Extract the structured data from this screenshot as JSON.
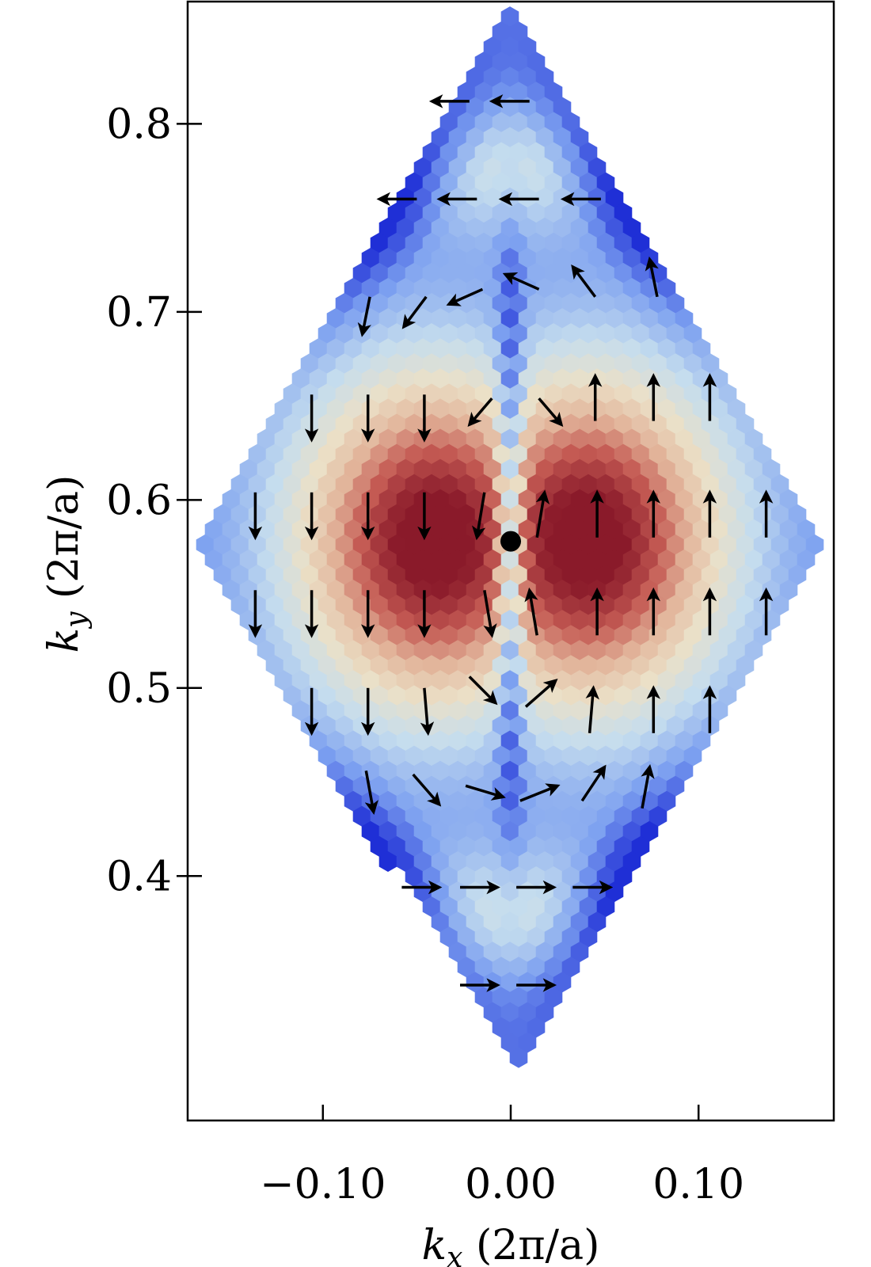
{
  "chart_data": {
    "type": "heatmap",
    "title": "",
    "xlabel": {
      "symbol": "k",
      "subscript": "x",
      "unit": " (2π/a)"
    },
    "ylabel": {
      "symbol": "k",
      "subscript": "y",
      "unit": " (2π/a)"
    },
    "xlim": [
      -0.172,
      0.172
    ],
    "ylim": [
      0.27,
      0.865
    ],
    "x_ticks": [
      {
        "value": -0.1,
        "label": "−0.10"
      },
      {
        "value": 0.0,
        "label": "0.00"
      },
      {
        "value": 0.1,
        "label": "0.10"
      }
    ],
    "y_ticks": [
      {
        "value": 0.4,
        "label": "0.4"
      },
      {
        "value": 0.5,
        "label": "0.5"
      },
      {
        "value": 0.6,
        "label": "0.6"
      },
      {
        "value": 0.7,
        "label": "0.7"
      },
      {
        "value": 0.8,
        "label": "0.8"
      }
    ],
    "grid": false,
    "legend": "none",
    "colormap": [
      "#1f2fd6",
      "#7b9ff0",
      "#c5ddee",
      "#ebe0c7",
      "#e2b49a",
      "#c45a53",
      "#8a1a2a"
    ],
    "region": {
      "shape": "rhombus",
      "center": [
        0.0,
        0.578
      ],
      "top": [
        0.0,
        0.86
      ],
      "bottom": [
        0.0,
        0.29
      ],
      "left": [
        -0.165,
        0.578
      ],
      "right": [
        0.165,
        0.578
      ]
    },
    "field_maxima": [
      [
        -0.04,
        0.578
      ],
      [
        0.04,
        0.578
      ]
    ],
    "marker": {
      "x": 0.0,
      "y": 0.578,
      "color": "#000000"
    },
    "arrow_color": "#000000",
    "arrows": [
      {
        "x": -0.022,
        "y": 0.812,
        "dx": -0.02,
        "dy": 0.0
      },
      {
        "x": 0.01,
        "y": 0.812,
        "dx": -0.02,
        "dy": 0.0
      },
      {
        "x": -0.05,
        "y": 0.76,
        "dx": -0.02,
        "dy": 0.0
      },
      {
        "x": -0.018,
        "y": 0.76,
        "dx": -0.02,
        "dy": 0.0
      },
      {
        "x": 0.015,
        "y": 0.76,
        "dx": -0.02,
        "dy": 0.0
      },
      {
        "x": 0.048,
        "y": 0.76,
        "dx": -0.02,
        "dy": 0.0
      },
      {
        "x": -0.075,
        "y": 0.708,
        "dx": -0.004,
        "dy": -0.02
      },
      {
        "x": -0.045,
        "y": 0.708,
        "dx": -0.012,
        "dy": -0.016
      },
      {
        "x": -0.015,
        "y": 0.712,
        "dx": -0.018,
        "dy": -0.008
      },
      {
        "x": 0.015,
        "y": 0.712,
        "dx": -0.018,
        "dy": 0.008
      },
      {
        "x": 0.045,
        "y": 0.708,
        "dx": -0.012,
        "dy": 0.016
      },
      {
        "x": 0.078,
        "y": 0.708,
        "dx": -0.004,
        "dy": 0.02
      },
      {
        "x": -0.106,
        "y": 0.656,
        "dx": 0.0,
        "dy": -0.024
      },
      {
        "x": -0.076,
        "y": 0.656,
        "dx": 0.0,
        "dy": -0.024
      },
      {
        "x": -0.046,
        "y": 0.656,
        "dx": 0.0,
        "dy": -0.024
      },
      {
        "x": -0.01,
        "y": 0.654,
        "dx": -0.012,
        "dy": -0.014
      },
      {
        "x": 0.015,
        "y": 0.654,
        "dx": 0.012,
        "dy": -0.014
      },
      {
        "x": 0.045,
        "y": 0.642,
        "dx": 0.0,
        "dy": 0.024
      },
      {
        "x": 0.076,
        "y": 0.642,
        "dx": 0.0,
        "dy": 0.024
      },
      {
        "x": 0.106,
        "y": 0.642,
        "dx": 0.0,
        "dy": 0.024
      },
      {
        "x": -0.136,
        "y": 0.604,
        "dx": 0.0,
        "dy": -0.024
      },
      {
        "x": -0.106,
        "y": 0.604,
        "dx": 0.0,
        "dy": -0.024
      },
      {
        "x": -0.076,
        "y": 0.604,
        "dx": 0.0,
        "dy": -0.024
      },
      {
        "x": -0.046,
        "y": 0.604,
        "dx": 0.0,
        "dy": -0.024
      },
      {
        "x": -0.014,
        "y": 0.604,
        "dx": -0.004,
        "dy": -0.024
      },
      {
        "x": 0.014,
        "y": 0.58,
        "dx": 0.004,
        "dy": 0.024
      },
      {
        "x": 0.046,
        "y": 0.58,
        "dx": 0.0,
        "dy": 0.024
      },
      {
        "x": 0.076,
        "y": 0.58,
        "dx": 0.0,
        "dy": 0.024
      },
      {
        "x": 0.106,
        "y": 0.58,
        "dx": 0.0,
        "dy": 0.024
      },
      {
        "x": 0.136,
        "y": 0.58,
        "dx": 0.0,
        "dy": 0.024
      },
      {
        "x": -0.136,
        "y": 0.552,
        "dx": 0.0,
        "dy": -0.024
      },
      {
        "x": -0.106,
        "y": 0.552,
        "dx": 0.0,
        "dy": -0.024
      },
      {
        "x": -0.076,
        "y": 0.552,
        "dx": 0.0,
        "dy": -0.024
      },
      {
        "x": -0.046,
        "y": 0.552,
        "dx": 0.0,
        "dy": -0.024
      },
      {
        "x": -0.014,
        "y": 0.552,
        "dx": 0.004,
        "dy": -0.024
      },
      {
        "x": 0.014,
        "y": 0.528,
        "dx": -0.004,
        "dy": 0.024
      },
      {
        "x": 0.046,
        "y": 0.528,
        "dx": 0.0,
        "dy": 0.024
      },
      {
        "x": 0.076,
        "y": 0.528,
        "dx": 0.0,
        "dy": 0.024
      },
      {
        "x": 0.106,
        "y": 0.528,
        "dx": 0.0,
        "dy": 0.024
      },
      {
        "x": 0.136,
        "y": 0.528,
        "dx": 0.0,
        "dy": 0.024
      },
      {
        "x": -0.106,
        "y": 0.5,
        "dx": 0.0,
        "dy": -0.024
      },
      {
        "x": -0.076,
        "y": 0.5,
        "dx": 0.0,
        "dy": -0.024
      },
      {
        "x": -0.046,
        "y": 0.5,
        "dx": 0.002,
        "dy": -0.024
      },
      {
        "x": -0.022,
        "y": 0.506,
        "dx": 0.014,
        "dy": -0.014
      },
      {
        "x": 0.008,
        "y": 0.49,
        "dx": 0.016,
        "dy": 0.014
      },
      {
        "x": 0.042,
        "y": 0.476,
        "dx": 0.002,
        "dy": 0.024
      },
      {
        "x": 0.076,
        "y": 0.476,
        "dx": 0.0,
        "dy": 0.024
      },
      {
        "x": 0.106,
        "y": 0.476,
        "dx": 0.0,
        "dy": 0.024
      },
      {
        "x": -0.077,
        "y": 0.456,
        "dx": 0.004,
        "dy": -0.022
      },
      {
        "x": -0.052,
        "y": 0.454,
        "dx": 0.014,
        "dy": -0.016
      },
      {
        "x": -0.024,
        "y": 0.448,
        "dx": 0.02,
        "dy": -0.006
      },
      {
        "x": 0.005,
        "y": 0.44,
        "dx": 0.02,
        "dy": 0.008
      },
      {
        "x": 0.038,
        "y": 0.44,
        "dx": 0.012,
        "dy": 0.018
      },
      {
        "x": 0.07,
        "y": 0.436,
        "dx": 0.004,
        "dy": 0.022
      },
      {
        "x": -0.058,
        "y": 0.394,
        "dx": 0.02,
        "dy": 0.0
      },
      {
        "x": -0.027,
        "y": 0.394,
        "dx": 0.02,
        "dy": 0.0
      },
      {
        "x": 0.003,
        "y": 0.394,
        "dx": 0.02,
        "dy": 0.0
      },
      {
        "x": 0.033,
        "y": 0.394,
        "dx": 0.02,
        "dy": 0.0
      },
      {
        "x": -0.027,
        "y": 0.342,
        "dx": 0.02,
        "dy": 0.0
      },
      {
        "x": 0.003,
        "y": 0.342,
        "dx": 0.02,
        "dy": 0.0
      }
    ]
  }
}
